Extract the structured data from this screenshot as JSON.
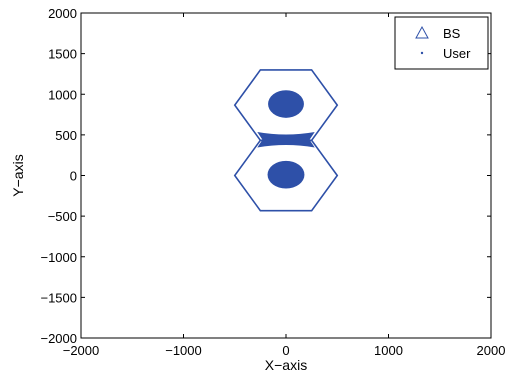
{
  "chart_data": {
    "type": "scatter",
    "title": "",
    "xlabel": "X−axis",
    "ylabel": "Y−axis",
    "xlim": [
      -2000,
      2000
    ],
    "ylim": [
      -2000,
      2000
    ],
    "xticks": [
      -2000,
      -1000,
      0,
      1000,
      2000
    ],
    "yticks": [
      -2000,
      -1500,
      -1000,
      -500,
      0,
      500,
      1000,
      1500,
      2000
    ],
    "xtick_labels": [
      "−2000",
      "−1000",
      "0",
      "1000",
      "2000"
    ],
    "ytick_labels": [
      "−2000",
      "−1500",
      "−1000",
      "−500",
      "0",
      "500",
      "1000",
      "1500",
      "2000"
    ],
    "grid": false,
    "legend_position": "top-right",
    "series": [
      {
        "name": "BS",
        "marker": "triangle",
        "color": "#2e50a8",
        "points": []
      },
      {
        "name": "User",
        "marker": "dot",
        "color": "#2e50a8"
      }
    ],
    "cells": [
      {
        "center": [
          0,
          866
        ],
        "circumradius": 500
      },
      {
        "center": [
          0,
          0
        ],
        "circumradius": 500
      }
    ],
    "user_clusters": [
      {
        "center": [
          0,
          880
        ],
        "radius_x": 175,
        "radius_y": 170
      },
      {
        "center": [
          0,
          10
        ],
        "radius_x": 180,
        "radius_y": 170
      },
      {
        "shape": "bowtie",
        "center": [
          0,
          440
        ],
        "half_width": 280,
        "half_height": 95
      }
    ],
    "colors": {
      "series": "#2e50a8",
      "axes": "#000000"
    }
  }
}
